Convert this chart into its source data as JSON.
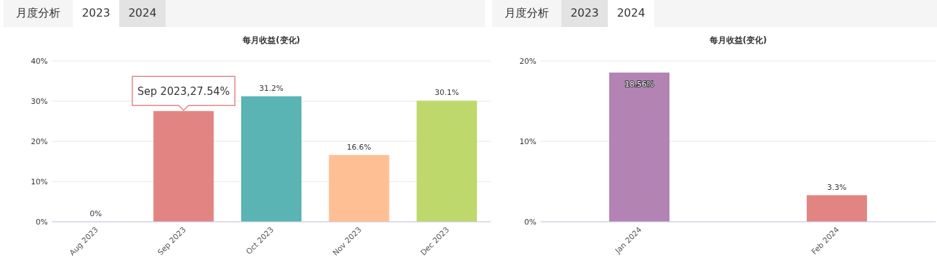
{
  "chart_data": [
    {
      "type": "bar",
      "title": "每月收益(变化)",
      "categories": [
        "Aug 2023",
        "Sep 2023",
        "Oct 2023",
        "Nov 2023",
        "Dec 2023"
      ],
      "values": [
        0,
        27.54,
        31.2,
        16.6,
        30.1
      ],
      "colors": [
        "#7b7fd6",
        "#e28582",
        "#5ab4b4",
        "#ffbf94",
        "#bed86c"
      ],
      "value_labels": [
        "0%",
        null,
        "31.2%",
        "16.6%",
        "30.1%"
      ],
      "ylim": [
        0,
        40
      ],
      "yticks": [
        {
          "value": 0,
          "label": "0%"
        },
        {
          "value": 10,
          "label": "10%"
        },
        {
          "value": 20,
          "label": "20%"
        },
        {
          "value": 30,
          "label": "30%"
        },
        {
          "value": 40,
          "label": "40%"
        }
      ],
      "grid": "y",
      "annotations": [
        "月度分析",
        "2023",
        "2024",
        {
          "text": "Sep 2023,27.54%",
          "x": "Sep 2023",
          "y": 27.54
        }
      ]
    },
    {
      "type": "bar",
      "title": "每月收益(变化)",
      "categories": [
        "Jan 2024",
        "Feb 2024"
      ],
      "values": [
        18.56,
        3.3
      ],
      "colors": [
        "#b283b3",
        "#e28582"
      ],
      "value_labels": [
        "18.56%",
        "3.3%"
      ],
      "ylim": [
        0,
        20
      ],
      "yticks": [
        {
          "value": 0,
          "label": "0%"
        },
        {
          "value": 10,
          "label": "10%"
        },
        {
          "value": 20,
          "label": "20%"
        }
      ],
      "grid": "y",
      "annotations": [
        "月度分析",
        "2023",
        "2024"
      ]
    }
  ]
}
